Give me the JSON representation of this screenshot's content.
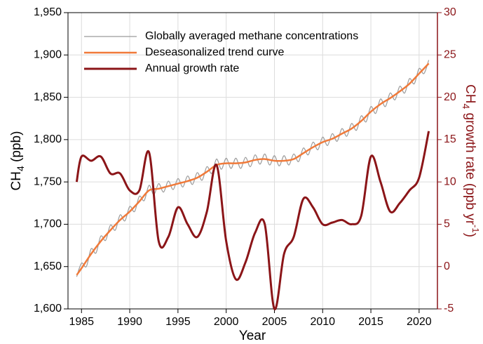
{
  "chart_data": {
    "type": "line",
    "xlabel": "Year",
    "ylabel": [
      "CH",
      "4",
      " (ppb)"
    ],
    "y2label": [
      "CH",
      "4",
      " growth rate (ppb yr",
      "-1",
      ")"
    ],
    "xlim": [
      1983.6,
      2021.9
    ],
    "xticks": [
      1985,
      1990,
      1995,
      2000,
      2005,
      2010,
      2015,
      2020
    ],
    "ylim": [
      1600,
      1950
    ],
    "yticks": [
      {
        "value": 1600,
        "label": "1,600"
      },
      {
        "value": 1650,
        "label": "1,650"
      },
      {
        "value": 1700,
        "label": "1,700"
      },
      {
        "value": 1750,
        "label": "1,750"
      },
      {
        "value": 1800,
        "label": "1,800"
      },
      {
        "value": 1850,
        "label": "1,850"
      },
      {
        "value": 1900,
        "label": "1,900"
      },
      {
        "value": 1950,
        "label": "1,950"
      }
    ],
    "y2lim": [
      -5,
      30
    ],
    "y2ticks": [
      -5,
      0,
      5,
      10,
      15,
      20,
      25,
      30
    ],
    "grid": true,
    "legend": "upper left",
    "series": [
      {
        "name": "Globally averaged methane concentrations",
        "color": "#9a9a9a",
        "axis": "y",
        "x": [
          1984.5,
          1985,
          1985.5,
          1986,
          1986.5,
          1987,
          1987.5,
          1988,
          1988.5,
          1989,
          1989.5,
          1990,
          1990.5,
          1991,
          1991.5,
          1992,
          1992.5,
          1993,
          1993.5,
          1994,
          1994.5,
          1995,
          1995.5,
          1996,
          1996.5,
          1997,
          1997.5,
          1998,
          1998.5,
          1999,
          1999.5,
          2000,
          2000.5,
          2001,
          2001.5,
          2002,
          2002.5,
          2003,
          2003.5,
          2004,
          2004.5,
          2005,
          2005.5,
          2006,
          2006.5,
          2007,
          2007.5,
          2008,
          2008.5,
          2009,
          2009.5,
          2010,
          2010.5,
          2011,
          2011.5,
          2012,
          2012.5,
          2013,
          2013.5,
          2014,
          2014.5,
          2015,
          2015.5,
          2016,
          2016.5,
          2017,
          2017.5,
          2018,
          2018.5,
          2019,
          2019.5,
          2020,
          2020.5,
          2021
        ],
        "values": [
          1638,
          1654,
          1650,
          1671,
          1666,
          1686,
          1681,
          1699,
          1693,
          1711,
          1704,
          1721,
          1715,
          1733,
          1728,
          1746,
          1735,
          1748,
          1738,
          1751,
          1741,
          1754,
          1744,
          1757,
          1747,
          1761,
          1752,
          1768,
          1760,
          1777,
          1765,
          1778,
          1766,
          1778,
          1766,
          1779,
          1768,
          1782,
          1771,
          1783,
          1770,
          1781,
          1769,
          1781,
          1770,
          1783,
          1774,
          1790,
          1782,
          1797,
          1788,
          1803,
          1793,
          1807,
          1798,
          1813,
          1804,
          1819,
          1811,
          1828,
          1821,
          1839,
          1831,
          1848,
          1839,
          1855,
          1847,
          1863,
          1855,
          1872,
          1866,
          1884,
          1878,
          1894
        ]
      },
      {
        "name": "Deseasonalized trend curve",
        "color": "#f07a3a",
        "axis": "y",
        "x": [
          1984.5,
          1985,
          1986,
          1987,
          1988,
          1989,
          1990,
          1991,
          1992,
          1993,
          1994,
          1995,
          1996,
          1997,
          1998,
          1999,
          2000,
          2001,
          2002,
          2003,
          2004,
          2005,
          2006,
          2007,
          2008,
          2009,
          2010,
          2011,
          2012,
          2013,
          2014,
          2015,
          2016,
          2017,
          2018,
          2019,
          2020,
          2021
        ],
        "values": [
          1640,
          1648,
          1665,
          1680,
          1693,
          1705,
          1715,
          1727,
          1740,
          1742,
          1745,
          1748,
          1751,
          1755,
          1762,
          1770,
          1772,
          1772,
          1773,
          1776,
          1777,
          1775,
          1775,
          1777,
          1784,
          1791,
          1797,
          1801,
          1807,
          1813,
          1822,
          1833,
          1842,
          1849,
          1857,
          1866,
          1878,
          1890
        ]
      },
      {
        "name": "Annual growth rate",
        "color": "#8b1518",
        "axis": "y2",
        "x": [
          1984.5,
          1985,
          1986,
          1987,
          1988,
          1989,
          1990,
          1991,
          1992,
          1993,
          1994,
          1995,
          1996,
          1997,
          1998,
          1999,
          2000,
          2001,
          2002,
          2003,
          2004,
          2005,
          2006,
          2007,
          2008,
          2009,
          2010,
          2011,
          2012,
          2013,
          2014,
          2015,
          2016,
          2017,
          2018,
          2019,
          2020,
          2021
        ],
        "values": [
          10,
          13,
          12.5,
          13,
          11,
          11,
          9,
          9,
          13.5,
          3,
          3.5,
          7,
          5,
          3.5,
          6.5,
          12,
          3,
          -1.5,
          0.5,
          4,
          5,
          -5,
          1.5,
          3.5,
          8,
          7,
          5,
          5.2,
          5.5,
          5,
          6,
          13,
          10,
          6.5,
          7.5,
          9,
          10.5,
          16
        ]
      }
    ]
  }
}
